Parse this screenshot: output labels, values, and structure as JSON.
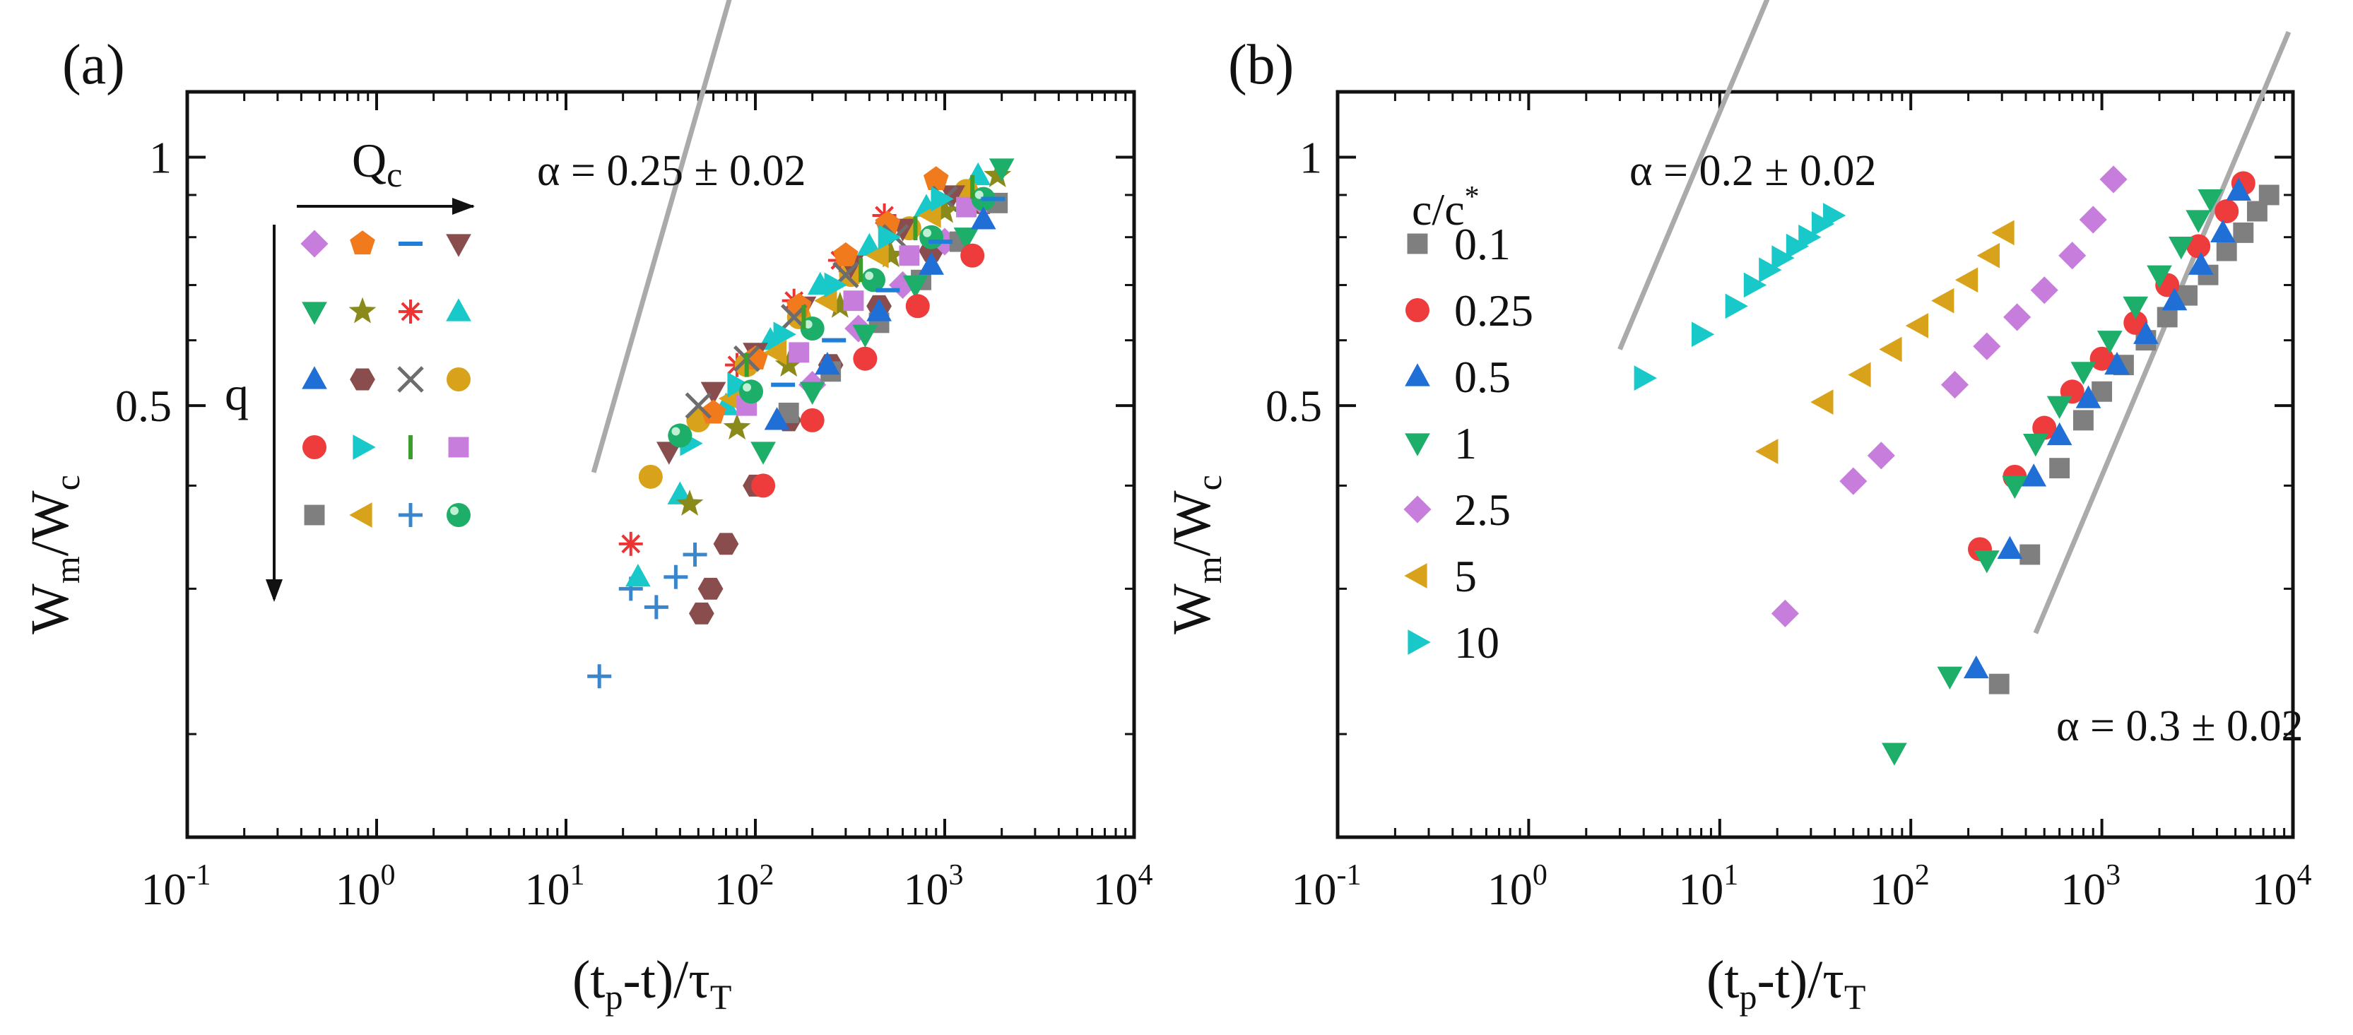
{
  "panels": [
    {
      "label": "(a)",
      "xlabel_text": "(t",
      "xlabel_sub1": "p",
      "xlabel_mid": "-t)/τ",
      "xlabel_sub2": "T",
      "ylabel_base": "W",
      "ylabel_sub1": "m",
      "ylabel_mid": "/W",
      "ylabel_sub2": "c",
      "annotation": "α = 0.25 ± 0.02",
      "arrow_h_label": "Q",
      "arrow_h_sub": "c",
      "arrow_v_label": "q"
    },
    {
      "label": "(b)",
      "xlabel_text": "(t",
      "xlabel_sub1": "p",
      "xlabel_mid": "-t)/τ",
      "xlabel_sub2": "T",
      "ylabel_base": "W",
      "ylabel_sub1": "m",
      "ylabel_mid": "/W",
      "ylabel_sub2": "c",
      "annotation_top": "α = 0.2 ± 0.02",
      "annotation_bottom": "α = 0.3 ± 0.02",
      "legend_title": "c/c",
      "legend_title_sup": "*"
    }
  ],
  "chart_data": [
    {
      "type": "scatter",
      "panel": "(a)",
      "xscale": "log",
      "yscale": "log",
      "xlim": [
        0.1,
        10000
      ],
      "ylim": [
        0.15,
        1.2
      ],
      "xticks": [
        "10-1",
        "100",
        "101",
        "102",
        "103",
        "104"
      ],
      "yticks": [
        "0.5",
        "1"
      ],
      "reference_line": {
        "slope": 0.25,
        "color": "#aaaaaa"
      },
      "marker_grid": [
        [
          "diamond:#c77ddb",
          "pentagon:#f07a1c",
          "minus:#1e7ed8",
          "tri_down:#8a4d4d"
        ],
        [
          "tri_down:#1dae6a",
          "star:#8a8a1a",
          "asterisk:#ee3333",
          "tri_up:#19c8c8"
        ],
        [
          "tri_up:#1f6fd6",
          "hexagon:#8a4d4d",
          "cross:#6d6d6d",
          "circle:#d9a21b"
        ],
        [
          "circle:#ee3b3b",
          "tri_right:#19c8c8",
          "vbar:#3a9e2c",
          "square:#c77ddb"
        ],
        [
          "square:#7f7f7f",
          "tri_left:#d9a21b",
          "plus:#3a86cc",
          "ball:#1dae6a"
        ]
      ],
      "series": [
        {
          "marker": "plus",
          "color": "#3a86cc",
          "points": [
            [
              15,
              0.235
            ],
            [
              22,
              0.3
            ],
            [
              30,
              0.285
            ],
            [
              38,
              0.31
            ],
            [
              48,
              0.33
            ]
          ]
        },
        {
          "marker": "asterisk",
          "color": "#ee3333",
          "points": [
            [
              22,
              0.34
            ],
            [
              40,
              0.46
            ],
            [
              80,
              0.56
            ],
            [
              160,
              0.67
            ],
            [
              280,
              0.75
            ],
            [
              480,
              0.85
            ]
          ]
        },
        {
          "marker": "tri_up",
          "color": "#19c8c8",
          "points": [
            [
              24,
              0.31
            ],
            [
              40,
              0.39
            ],
            [
              70,
              0.5
            ],
            [
              120,
              0.6
            ],
            [
              220,
              0.7
            ],
            [
              400,
              0.78
            ],
            [
              800,
              0.87
            ],
            [
              1500,
              0.95
            ]
          ]
        },
        {
          "marker": "hexagon",
          "color": "#8a4d4d",
          "points": [
            [
              52,
              0.28
            ],
            [
              58,
              0.3
            ],
            [
              70,
              0.34
            ],
            [
              100,
              0.4
            ],
            [
              150,
              0.48
            ],
            [
              250,
              0.56
            ],
            [
              450,
              0.66
            ],
            [
              850,
              0.77
            ],
            [
              1600,
              0.88
            ]
          ]
        },
        {
          "marker": "circle",
          "color": "#d9a21b",
          "points": [
            [
              28,
              0.41
            ],
            [
              50,
              0.48
            ],
            [
              90,
              0.56
            ],
            [
              170,
              0.64
            ],
            [
              320,
              0.72
            ],
            [
              650,
              0.82
            ],
            [
              1300,
              0.91
            ]
          ]
        },
        {
          "marker": "tri_down",
          "color": "#8a4d4d",
          "points": [
            [
              35,
              0.44
            ],
            [
              60,
              0.52
            ],
            [
              100,
              0.58
            ],
            [
              180,
              0.66
            ],
            [
              320,
              0.74
            ],
            [
              600,
              0.82
            ],
            [
              1100,
              0.9
            ]
          ]
        },
        {
          "marker": "pentagon",
          "color": "#f07a1c",
          "points": [
            [
              60,
              0.49
            ],
            [
              100,
              0.57
            ],
            [
              170,
              0.66
            ],
            [
              300,
              0.76
            ],
            [
              500,
              0.83
            ],
            [
              900,
              0.94
            ]
          ]
        },
        {
          "marker": "cross",
          "color": "#6d6d6d",
          "points": [
            [
              50,
              0.5
            ],
            [
              90,
              0.57
            ],
            [
              160,
              0.64
            ],
            [
              300,
              0.72
            ],
            [
              550,
              0.8
            ],
            [
              1000,
              0.89
            ]
          ]
        },
        {
          "marker": "star",
          "color": "#8a8a1a",
          "points": [
            [
              45,
              0.38
            ],
            [
              80,
              0.47
            ],
            [
              150,
              0.56
            ],
            [
              280,
              0.66
            ],
            [
              520,
              0.76
            ],
            [
              1000,
              0.86
            ],
            [
              1900,
              0.95
            ]
          ]
        },
        {
          "marker": "diamond",
          "color": "#c77ddb",
          "points": [
            [
              200,
              0.53
            ],
            [
              350,
              0.62
            ],
            [
              600,
              0.7
            ],
            [
              1000,
              0.79
            ],
            [
              1600,
              0.88
            ]
          ]
        },
        {
          "marker": "square",
          "color": "#7f7f7f",
          "points": [
            [
              150,
              0.49
            ],
            [
              250,
              0.55
            ],
            [
              450,
              0.63
            ],
            [
              750,
              0.71
            ],
            [
              1200,
              0.79
            ],
            [
              1900,
              0.88
            ]
          ]
        },
        {
          "marker": "tri_left",
          "color": "#d9a21b",
          "points": [
            [
              75,
              0.51
            ],
            [
              130,
              0.58
            ],
            [
              240,
              0.67
            ],
            [
              450,
              0.76
            ],
            [
              850,
              0.85
            ]
          ]
        },
        {
          "marker": "tri_right",
          "color": "#19c8c8",
          "points": [
            [
              45,
              0.45
            ],
            [
              80,
              0.53
            ],
            [
              140,
              0.61
            ],
            [
              260,
              0.7
            ],
            [
              500,
              0.8
            ],
            [
              950,
              0.89
            ]
          ]
        },
        {
          "marker": "square",
          "color": "#c77ddb",
          "points": [
            [
              90,
              0.5
            ],
            [
              170,
              0.58
            ],
            [
              330,
              0.67
            ],
            [
              650,
              0.76
            ],
            [
              1300,
              0.87
            ]
          ]
        },
        {
          "marker": "ball",
          "color": "#1dae6a",
          "points": [
            [
              40,
              0.46
            ],
            [
              95,
              0.52
            ],
            [
              200,
              0.62
            ],
            [
              420,
              0.71
            ],
            [
              850,
              0.8
            ],
            [
              1600,
              0.89
            ]
          ]
        },
        {
          "marker": "tri_down",
          "color": "#1dae6a",
          "points": [
            [
              110,
              0.44
            ],
            [
              200,
              0.52
            ],
            [
              380,
              0.61
            ],
            [
              700,
              0.7
            ],
            [
              1300,
              0.8
            ],
            [
              2000,
              0.97
            ]
          ]
        },
        {
          "marker": "tri_up",
          "color": "#1f6fd6",
          "points": [
            [
              130,
              0.48
            ],
            [
              240,
              0.56
            ],
            [
              450,
              0.65
            ],
            [
              850,
              0.74
            ],
            [
              1600,
              0.84
            ]
          ]
        },
        {
          "marker": "circle",
          "color": "#ee3b3b",
          "points": [
            [
              110,
              0.4
            ],
            [
              200,
              0.48
            ],
            [
              380,
              0.57
            ],
            [
              720,
              0.66
            ],
            [
              1400,
              0.76
            ]
          ]
        },
        {
          "marker": "minus",
          "color": "#1e7ed8",
          "points": [
            [
              140,
              0.53
            ],
            [
              260,
              0.6
            ],
            [
              500,
              0.69
            ],
            [
              950,
              0.79
            ],
            [
              1800,
              0.89
            ]
          ]
        },
        {
          "marker": "vbar",
          "color": "#3a9e2c",
          "points": [
            [
              90,
              0.56
            ],
            [
              180,
              0.64
            ],
            [
              360,
              0.73
            ],
            [
              700,
              0.82
            ],
            [
              1400,
              0.92
            ]
          ]
        }
      ]
    },
    {
      "type": "scatter",
      "panel": "(b)",
      "xscale": "log",
      "yscale": "log",
      "xlim": [
        0.1,
        10000
      ],
      "ylim": [
        0.15,
        1.2
      ],
      "xticks": [
        "10-1",
        "100",
        "101",
        "102",
        "103",
        "104"
      ],
      "yticks": [
        "0.5",
        "1"
      ],
      "reference_lines": [
        {
          "slope": 0.2,
          "color": "#aaaaaa"
        },
        {
          "slope": 0.3,
          "color": "#aaaaaa"
        }
      ],
      "series": [
        {
          "name": "0.1",
          "marker": "square",
          "color": "#7f7f7f",
          "points": [
            [
              290,
              0.23
            ],
            [
              420,
              0.33
            ],
            [
              600,
              0.42
            ],
            [
              800,
              0.48
            ],
            [
              1000,
              0.52
            ],
            [
              1300,
              0.56
            ],
            [
              1700,
              0.6
            ],
            [
              2200,
              0.64
            ],
            [
              2800,
              0.68
            ],
            [
              3600,
              0.72
            ],
            [
              4500,
              0.77
            ],
            [
              5500,
              0.81
            ],
            [
              6500,
              0.86
            ],
            [
              7500,
              0.9
            ]
          ]
        },
        {
          "name": "0.25",
          "marker": "circle",
          "color": "#ee3b3b",
          "points": [
            [
              230,
              0.335
            ],
            [
              350,
              0.41
            ],
            [
              500,
              0.47
            ],
            [
              700,
              0.52
            ],
            [
              1000,
              0.57
            ],
            [
              1500,
              0.63
            ],
            [
              2200,
              0.7
            ],
            [
              3200,
              0.78
            ],
            [
              4500,
              0.86
            ],
            [
              5500,
              0.93
            ]
          ]
        },
        {
          "name": "0.5",
          "marker": "tri_up",
          "color": "#1f6fd6",
          "points": [
            [
              220,
              0.24
            ],
            [
              330,
              0.335
            ],
            [
              440,
              0.41
            ],
            [
              600,
              0.46
            ],
            [
              850,
              0.51
            ],
            [
              1200,
              0.56
            ],
            [
              1700,
              0.61
            ],
            [
              2400,
              0.67
            ],
            [
              3300,
              0.74
            ],
            [
              4300,
              0.81
            ],
            [
              5200,
              0.91
            ]
          ]
        },
        {
          "name": "1",
          "marker": "tri_down",
          "color": "#1dae6a",
          "points": [
            [
              82,
              0.19
            ],
            [
              160,
              0.235
            ],
            [
              250,
              0.325
            ],
            [
              350,
              0.4
            ],
            [
              450,
              0.45
            ],
            [
              600,
              0.5
            ],
            [
              800,
              0.55
            ],
            [
              1100,
              0.6
            ],
            [
              1500,
              0.66
            ],
            [
              2000,
              0.72
            ],
            [
              2600,
              0.78
            ],
            [
              3200,
              0.84
            ],
            [
              3700,
              0.89
            ]
          ]
        },
        {
          "name": "2.5",
          "marker": "diamond",
          "color": "#c77ddb",
          "points": [
            [
              22,
              0.28
            ],
            [
              50,
              0.405
            ],
            [
              70,
              0.435
            ],
            [
              170,
              0.53
            ],
            [
              250,
              0.59
            ],
            [
              360,
              0.64
            ],
            [
              500,
              0.69
            ],
            [
              700,
              0.76
            ],
            [
              900,
              0.84
            ],
            [
              1150,
              0.94
            ]
          ]
        },
        {
          "name": "5",
          "marker": "tri_left",
          "color": "#d9a21b",
          "points": [
            [
              18,
              0.44
            ],
            [
              35,
              0.505
            ],
            [
              55,
              0.545
            ],
            [
              80,
              0.585
            ],
            [
              110,
              0.625
            ],
            [
              150,
              0.67
            ],
            [
              200,
              0.71
            ],
            [
              260,
              0.76
            ],
            [
              310,
              0.81
            ]
          ]
        },
        {
          "name": "10",
          "marker": "tri_right",
          "color": "#19c8c8",
          "points": [
            [
              4,
              0.54
            ],
            [
              8,
              0.61
            ],
            [
              12,
              0.66
            ],
            [
              15,
              0.7
            ],
            [
              18,
              0.73
            ],
            [
              21,
              0.755
            ],
            [
              25,
              0.78
            ],
            [
              29,
              0.8
            ],
            [
              34,
              0.83
            ],
            [
              39,
              0.85
            ]
          ]
        }
      ]
    }
  ]
}
